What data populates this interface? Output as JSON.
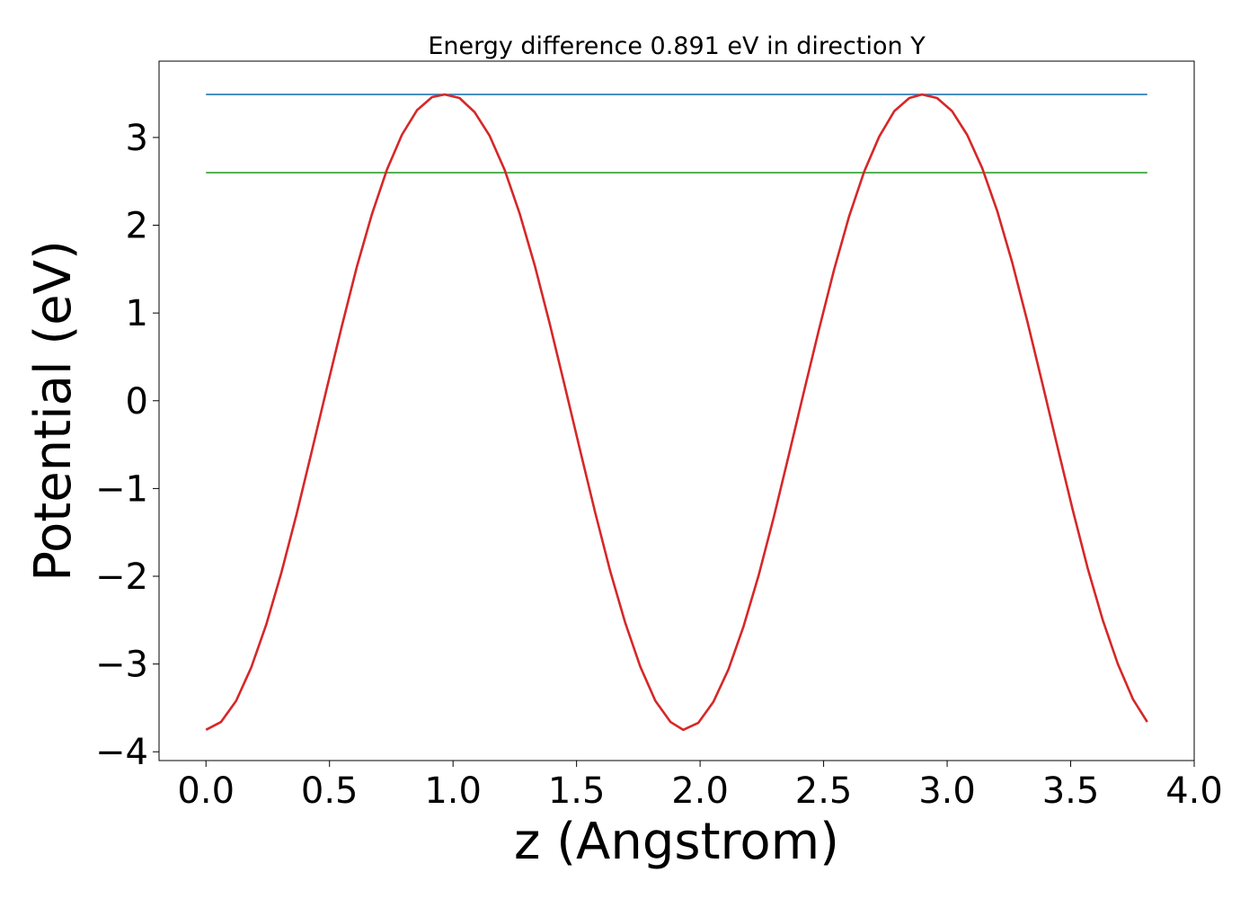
{
  "chart_data": {
    "type": "line",
    "title": "Energy difference 0.891 eV in direction Y",
    "xlabel": "z (Angstrom)",
    "ylabel": "Potential (eV)",
    "xlim": [
      -0.19,
      4.0
    ],
    "ylim": [
      -4.1,
      3.87
    ],
    "x_ticks": [
      0.0,
      0.5,
      1.0,
      1.5,
      2.0,
      2.5,
      3.0,
      3.5,
      4.0
    ],
    "x_tick_labels": [
      "0.0",
      "0.5",
      "1.0",
      "1.5",
      "2.0",
      "2.5",
      "3.0",
      "3.5",
      "4.0"
    ],
    "y_ticks": [
      -4,
      -3,
      -2,
      -1,
      0,
      1,
      2,
      3
    ],
    "y_tick_labels": [
      "−4",
      "−3",
      "−2",
      "−1",
      "0",
      "1",
      "2",
      "3"
    ],
    "grid": false,
    "legend": "none",
    "series": [
      {
        "color": "#1f77b4",
        "x": [
          0.0,
          3.81
        ],
        "y": [
          3.49,
          3.49
        ]
      },
      {
        "color": "#2ca02c",
        "x": [
          0.0,
          3.81
        ],
        "y": [
          2.599,
          2.599
        ]
      },
      {
        "color": "#d62728",
        "x": [
          0.0,
          0.061,
          0.122,
          0.183,
          0.244,
          0.305,
          0.366,
          0.427,
          0.488,
          0.549,
          0.61,
          0.671,
          0.732,
          0.793,
          0.854,
          0.915,
          0.966,
          1.026,
          1.087,
          1.148,
          1.209,
          1.27,
          1.331,
          1.392,
          1.453,
          1.514,
          1.575,
          1.636,
          1.697,
          1.758,
          1.819,
          1.88,
          1.932,
          1.993,
          2.054,
          2.115,
          2.176,
          2.237,
          2.298,
          2.359,
          2.42,
          2.481,
          2.542,
          2.603,
          2.664,
          2.725,
          2.786,
          2.847,
          2.898,
          2.959,
          3.02,
          3.081,
          3.142,
          3.203,
          3.264,
          3.325,
          3.386,
          3.447,
          3.508,
          3.569,
          3.63,
          3.691,
          3.752,
          3.81
        ],
        "y": [
          -3.75,
          -3.66,
          -3.42,
          -3.04,
          -2.55,
          -1.96,
          -1.3,
          -0.59,
          0.13,
          0.84,
          1.52,
          2.12,
          2.63,
          3.03,
          3.31,
          3.46,
          3.49,
          3.45,
          3.29,
          3.02,
          2.63,
          2.13,
          1.54,
          0.87,
          0.16,
          -0.56,
          -1.27,
          -1.94,
          -2.53,
          -3.03,
          -3.42,
          -3.66,
          -3.75,
          -3.67,
          -3.43,
          -3.06,
          -2.57,
          -1.99,
          -1.33,
          -0.62,
          0.1,
          0.81,
          1.49,
          2.1,
          2.61,
          3.01,
          3.3,
          3.45,
          3.49,
          3.45,
          3.3,
          3.03,
          2.65,
          2.16,
          1.57,
          0.9,
          0.19,
          -0.53,
          -1.24,
          -1.91,
          -2.5,
          -3.0,
          -3.4,
          -3.66
        ]
      }
    ]
  }
}
